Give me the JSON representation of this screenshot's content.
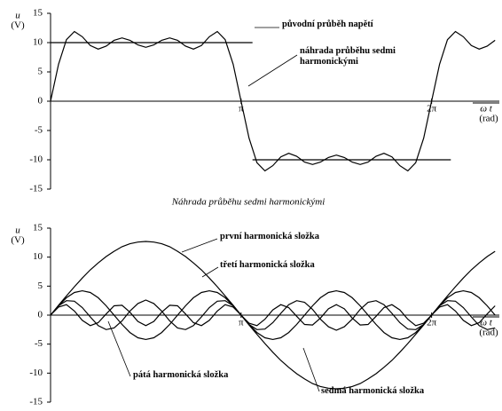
{
  "chart_data": [
    {
      "type": "line",
      "y_label": "u",
      "y_unit": "(V)",
      "x_label": "ω t",
      "x_unit": "(rad)",
      "caption": "Náhrada průběhu sedmi harmonickými",
      "xlim": [
        0,
        7.4
      ],
      "ylim": [
        -15,
        15
      ],
      "yticks": [
        -15,
        -10,
        -5,
        0,
        5,
        10,
        15
      ],
      "xticks": [
        {
          "value": 3.1416,
          "label": "π"
        },
        {
          "value": 6.2832,
          "label": "2π"
        }
      ],
      "x": [
        0,
        0.1309,
        0.2618,
        0.3927,
        0.5236,
        0.6545,
        0.7854,
        0.9163,
        1.0472,
        1.1781,
        1.309,
        1.4399,
        1.5708,
        1.7017,
        1.8326,
        1.9635,
        2.0944,
        2.2253,
        2.3562,
        2.4871,
        2.618,
        2.7489,
        2.8798,
        3.0107,
        3.1416,
        3.2725,
        3.4034,
        3.5343,
        3.6652,
        3.7961,
        3.927,
        4.0579,
        4.1888,
        4.3197,
        4.4506,
        4.5815,
        4.7124,
        4.8433,
        4.9742,
        5.1051,
        5.236,
        5.3669,
        5.4978,
        5.6287,
        5.7596,
        5.8905,
        6.0214,
        6.1523,
        6.2832,
        6.4141,
        6.545,
        6.6759,
        6.8068,
        6.9377,
        7.0686,
        7.1995,
        7.3304
      ],
      "series": [
        {
          "name": "původní průběh napětí",
          "color": "#000000",
          "x": [
            0,
            3.33,
            3.33,
            3.33,
            6.6
          ],
          "values": [
            10,
            10,
            null,
            -10,
            -10
          ]
        },
        {
          "name": "náhrada průběhu sedmi harmonickými",
          "color": "#000000",
          "values": [
            0,
            6.3,
            10.5,
            11.9,
            11.0,
            9.5,
            8.9,
            9.4,
            10.4,
            10.8,
            10.4,
            9.6,
            9.2,
            9.6,
            10.4,
            10.8,
            10.4,
            9.4,
            8.9,
            9.5,
            11.0,
            11.9,
            10.5,
            6.3,
            0,
            -6.3,
            -10.5,
            -11.9,
            -11.0,
            -9.5,
            -8.9,
            -9.4,
            -10.4,
            -10.8,
            -10.4,
            -9.6,
            -9.2,
            -9.6,
            -10.4,
            -10.8,
            -10.4,
            -9.4,
            -8.9,
            -9.5,
            -11.0,
            -11.9,
            -10.5,
            -6.3,
            0,
            6.3,
            10.5,
            11.9,
            11.0,
            9.5,
            8.9,
            9.4,
            10.4
          ]
        }
      ]
    },
    {
      "type": "line",
      "y_label": "u",
      "y_unit": "(V)",
      "x_label": "ω t",
      "x_unit": "(rad)",
      "xlim": [
        0,
        7.4
      ],
      "ylim": [
        -15,
        15
      ],
      "yticks": [
        -15,
        -10,
        -5,
        0,
        5,
        10,
        15
      ],
      "xticks": [
        {
          "value": 3.1416,
          "label": "π"
        },
        {
          "value": 6.2832,
          "label": "2π"
        }
      ],
      "x": [
        0,
        0.1309,
        0.2618,
        0.3927,
        0.5236,
        0.6545,
        0.7854,
        0.9163,
        1.0472,
        1.1781,
        1.309,
        1.4399,
        1.5708,
        1.7017,
        1.8326,
        1.9635,
        2.0944,
        2.2253,
        2.3562,
        2.4871,
        2.618,
        2.7489,
        2.8798,
        3.0107,
        3.1416,
        3.2725,
        3.4034,
        3.5343,
        3.6652,
        3.7961,
        3.927,
        4.0579,
        4.1888,
        4.3197,
        4.4506,
        4.5815,
        4.7124,
        4.8433,
        4.9742,
        5.1051,
        5.236,
        5.3669,
        5.4978,
        5.6287,
        5.7596,
        5.8905,
        6.0214,
        6.1523,
        6.2832,
        6.4141,
        6.545,
        6.6759,
        6.8068,
        6.9377,
        7.0686,
        7.1995,
        7.3304
      ],
      "series": [
        {
          "name": "první harmonická složka",
          "color": "#000000",
          "values": [
            0,
            1.7,
            3.3,
            4.9,
            6.4,
            7.8,
            9.0,
            10.1,
            11.0,
            11.8,
            12.3,
            12.6,
            12.7,
            12.6,
            12.3,
            11.8,
            11.0,
            10.1,
            9.0,
            7.8,
            6.4,
            4.9,
            3.3,
            1.7,
            0,
            -1.7,
            -3.3,
            -4.9,
            -6.4,
            -7.8,
            -9.0,
            -10.1,
            -11.0,
            -11.8,
            -12.3,
            -12.6,
            -12.7,
            -12.6,
            -12.3,
            -11.8,
            -11.0,
            -10.1,
            -9.0,
            -7.8,
            -6.4,
            -4.9,
            -3.3,
            -1.7,
            0,
            1.7,
            3.3,
            4.9,
            6.4,
            7.8,
            9.0,
            10.1,
            11.0
          ]
        },
        {
          "name": "třetí harmonická složka",
          "color": "#000000",
          "values": [
            0,
            1.6,
            3.0,
            3.9,
            4.2,
            3.9,
            3.0,
            1.6,
            0,
            -1.6,
            -3.0,
            -3.9,
            -4.2,
            -3.9,
            -3.0,
            -1.6,
            0,
            1.6,
            3.0,
            3.9,
            4.2,
            3.9,
            3.0,
            1.6,
            0,
            -1.6,
            -3.0,
            -3.9,
            -4.2,
            -3.9,
            -3.0,
            -1.6,
            0,
            1.6,
            3.0,
            3.9,
            4.2,
            3.9,
            3.0,
            1.6,
            0,
            -1.6,
            -3.0,
            -3.9,
            -4.2,
            -3.9,
            -3.0,
            -1.6,
            0,
            1.6,
            3.0,
            3.9,
            4.2,
            3.9,
            3.0,
            1.6,
            0
          ]
        },
        {
          "name": "pátá harmonická složka",
          "color": "#000000",
          "values": [
            0,
            1.6,
            2.5,
            2.4,
            1.3,
            -0.3,
            -1.8,
            -2.5,
            -2.2,
            -1.0,
            0.7,
            2.0,
            2.6,
            2.0,
            0.7,
            -1.0,
            -2.2,
            -2.5,
            -1.8,
            -0.3,
            1.3,
            2.4,
            2.5,
            1.6,
            0,
            -1.6,
            -2.5,
            -2.4,
            -1.3,
            0.3,
            1.8,
            2.5,
            2.2,
            1.0,
            -0.7,
            -2.0,
            -2.6,
            -2.0,
            -0.7,
            1.0,
            2.2,
            2.5,
            1.8,
            0.3,
            -1.3,
            -2.4,
            -2.5,
            -1.6,
            0,
            1.6,
            2.5,
            2.4,
            1.3,
            -0.3,
            -1.8,
            -2.5,
            -2.2
          ]
        },
        {
          "name": "sedmá harmonická složka",
          "color": "#000000",
          "values": [
            0,
            1.4,
            1.8,
            0.7,
            -0.9,
            -1.8,
            -1.3,
            0.2,
            1.6,
            1.7,
            0.5,
            -1.1,
            -1.8,
            -1.1,
            0.5,
            1.7,
            1.6,
            0.2,
            -1.3,
            -1.8,
            -0.9,
            0.7,
            1.8,
            1.4,
            0,
            -1.4,
            -1.8,
            -0.7,
            0.9,
            1.8,
            1.3,
            -0.2,
            -1.6,
            -1.7,
            -0.5,
            1.1,
            1.8,
            1.1,
            -0.5,
            -1.7,
            -1.6,
            -0.2,
            1.3,
            1.8,
            0.9,
            -0.7,
            -1.8,
            -1.4,
            0,
            1.4,
            1.8,
            0.7,
            -0.9,
            -1.8,
            -1.3,
            0.2,
            1.6
          ]
        }
      ]
    }
  ]
}
